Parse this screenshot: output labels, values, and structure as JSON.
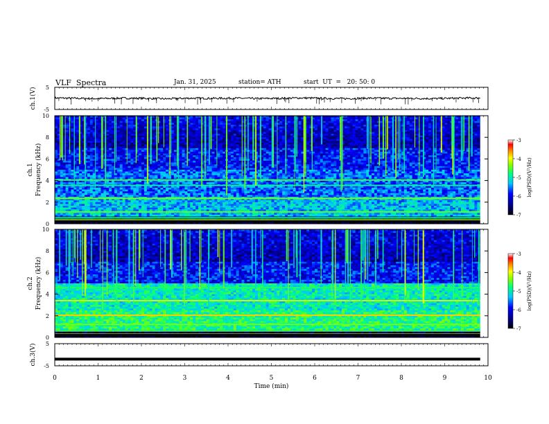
{
  "header": {
    "title": "VLF  Spectra",
    "date": "Jan. 31, 2025",
    "station": "station= ATH",
    "start": "start  UT  =   20: 50: 0"
  },
  "chart_data": [
    {
      "type": "line",
      "panel": "ch1-waveform",
      "ylabel": "ch.1(V)",
      "ylim": [
        -5,
        5
      ],
      "yticks": [
        "5",
        "-5"
      ],
      "xlim": [
        0,
        10
      ],
      "series": [
        {
          "values": [
            0.2,
            0.0,
            -0.1,
            0.1,
            0.0,
            -0.2,
            0.1,
            0.0,
            0.1,
            -0.1,
            0.0,
            0.2,
            0.0,
            -0.1,
            0.1,
            0.0,
            0.0,
            -0.1,
            0.1,
            0.2
          ]
        }
      ]
    },
    {
      "type": "heatmap",
      "panel": "ch1-spectrogram",
      "ylabel": "ch.1\nFrequency (kHz)",
      "ylim": [
        0,
        10
      ],
      "yticks": [
        "0",
        "2",
        "4",
        "6",
        "8",
        "10"
      ],
      "xlim": [
        0,
        10
      ],
      "colorbar": {
        "label": "log(PSD)(V²/Hz)",
        "range": [
          -7,
          -3
        ],
        "ticks": [
          "-3",
          "-4",
          "-5",
          "-6",
          "-7"
        ]
      }
    },
    {
      "type": "heatmap",
      "panel": "ch2-spectrogram",
      "ylabel": "ch.2\nFrequency (kHz)",
      "ylim": [
        0,
        10
      ],
      "yticks": [
        "0",
        "2",
        "4",
        "6",
        "8",
        "10"
      ],
      "xlim": [
        0,
        10
      ],
      "colorbar": {
        "label": "log(PSD)(V²/Hz)",
        "range": [
          -7,
          -3
        ],
        "ticks": [
          "-3",
          "-4",
          "-5",
          "-6",
          "-7"
        ]
      }
    },
    {
      "type": "line",
      "panel": "ch3-waveform",
      "ylabel": "ch.3(V)",
      "ylim": [
        -5,
        5
      ],
      "yticks": [
        "5",
        "-5"
      ],
      "xlim": [
        0,
        10
      ],
      "xlabel": "Time  (min)",
      "xticks": [
        "0",
        "1",
        "2",
        "3",
        "4",
        "5",
        "6",
        "7",
        "8",
        "9",
        "10"
      ],
      "series": [
        {
          "values": [
            -2.0,
            -2.0,
            -2.0,
            -2.0,
            -2.0,
            -2.0,
            -2.0,
            -2.0,
            -2.0,
            -2.0,
            -2.0
          ]
        }
      ]
    }
  ]
}
